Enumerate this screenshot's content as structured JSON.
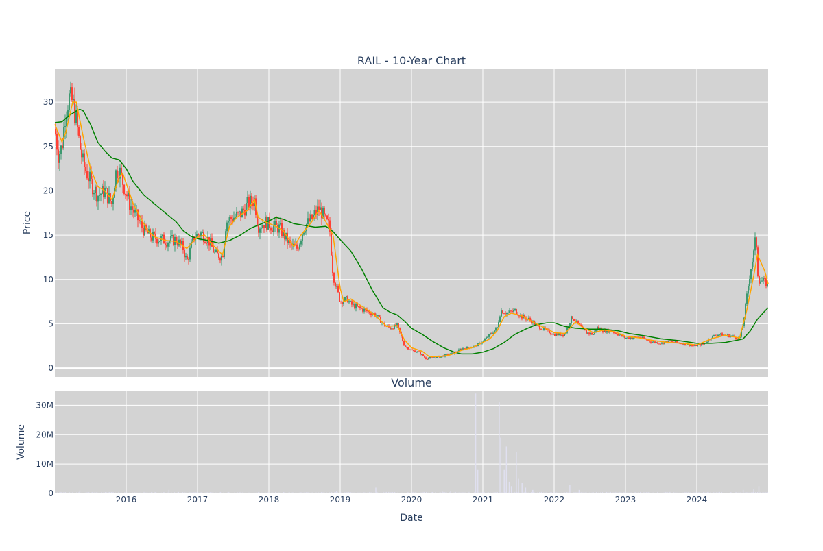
{
  "chart_data": [
    {
      "type": "candlestick",
      "title": "RAIL - 10-Year Chart",
      "ylabel": "Price",
      "ylim": [
        -1,
        33.8
      ],
      "y_ticks": [
        "0",
        "5",
        "10",
        "15",
        "20",
        "25",
        "30"
      ],
      "y_tick_values": [
        0,
        5,
        10,
        15,
        20,
        25,
        30
      ],
      "grid": true,
      "colors": {
        "up": "#3d9970",
        "down": "#ff4136",
        "ma_short": "#ffa500",
        "ma_long": "#008000",
        "background": "#d3d3d3"
      },
      "price_path": [
        [
          2015.0,
          27
        ],
        [
          2015.05,
          24
        ],
        [
          2015.1,
          25
        ],
        [
          2015.15,
          29
        ],
        [
          2015.2,
          30.5
        ],
        [
          2015.25,
          30
        ],
        [
          2015.3,
          28
        ],
        [
          2015.35,
          25
        ],
        [
          2015.4,
          23
        ],
        [
          2015.5,
          21
        ],
        [
          2015.6,
          19.5
        ],
        [
          2015.7,
          20
        ],
        [
          2015.8,
          18.5
        ],
        [
          2015.85,
          22
        ],
        [
          2015.9,
          22.5
        ],
        [
          2015.95,
          21
        ],
        [
          2016.05,
          18.5
        ],
        [
          2016.15,
          17
        ],
        [
          2016.25,
          15.5
        ],
        [
          2016.35,
          14.8
        ],
        [
          2016.5,
          14.5
        ],
        [
          2016.6,
          14.3
        ],
        [
          2016.7,
          14.5
        ],
        [
          2016.8,
          13.5
        ],
        [
          2016.85,
          12
        ],
        [
          2016.95,
          14.8
        ],
        [
          2017.05,
          15.2
        ],
        [
          2017.15,
          14.5
        ],
        [
          2017.25,
          12.8
        ],
        [
          2017.35,
          12.6
        ],
        [
          2017.4,
          16.5
        ],
        [
          2017.5,
          17
        ],
        [
          2017.6,
          17.3
        ],
        [
          2017.7,
          18.5
        ],
        [
          2017.8,
          19
        ],
        [
          2017.85,
          16
        ],
        [
          2017.95,
          16.5
        ],
        [
          2018.05,
          16
        ],
        [
          2018.15,
          15.8
        ],
        [
          2018.25,
          14.5
        ],
        [
          2018.3,
          13.8
        ],
        [
          2018.4,
          13.5
        ],
        [
          2018.5,
          16
        ],
        [
          2018.6,
          16.8
        ],
        [
          2018.7,
          18
        ],
        [
          2018.75,
          17.5
        ],
        [
          2018.8,
          16.5
        ],
        [
          2018.85,
          16
        ],
        [
          2018.9,
          10.5
        ],
        [
          2018.95,
          9
        ],
        [
          2019.0,
          7.5
        ],
        [
          2019.1,
          7.8
        ],
        [
          2019.15,
          7.2
        ],
        [
          2019.25,
          6.8
        ],
        [
          2019.35,
          6.5
        ],
        [
          2019.5,
          6
        ],
        [
          2019.6,
          5
        ],
        [
          2019.7,
          4.5
        ],
        [
          2019.8,
          4.8
        ],
        [
          2019.9,
          2.5
        ],
        [
          2020.0,
          2
        ],
        [
          2020.1,
          1.8
        ],
        [
          2020.2,
          1.1
        ],
        [
          2020.3,
          1.2
        ],
        [
          2020.4,
          1.3
        ],
        [
          2020.5,
          1.5
        ],
        [
          2020.6,
          1.7
        ],
        [
          2020.7,
          2.2
        ],
        [
          2020.8,
          2.3
        ],
        [
          2020.9,
          2.5
        ],
        [
          2021.0,
          3
        ],
        [
          2021.1,
          3.8
        ],
        [
          2021.2,
          4.5
        ],
        [
          2021.25,
          6.5
        ],
        [
          2021.35,
          6.2
        ],
        [
          2021.45,
          6.5
        ],
        [
          2021.55,
          5.8
        ],
        [
          2021.65,
          5.5
        ],
        [
          2021.75,
          4.8
        ],
        [
          2021.9,
          4.2
        ],
        [
          2022.0,
          3.8
        ],
        [
          2022.15,
          3.8
        ],
        [
          2022.25,
          5.8
        ],
        [
          2022.35,
          4.8
        ],
        [
          2022.45,
          4
        ],
        [
          2022.55,
          3.8
        ],
        [
          2022.6,
          4.6
        ],
        [
          2022.7,
          4.2
        ],
        [
          2022.8,
          4.2
        ],
        [
          2022.9,
          3.8
        ],
        [
          2023.0,
          3.4
        ],
        [
          2023.2,
          3.5
        ],
        [
          2023.35,
          3
        ],
        [
          2023.5,
          2.8
        ],
        [
          2023.6,
          3
        ],
        [
          2023.8,
          2.8
        ],
        [
          2023.95,
          2.5
        ],
        [
          2024.1,
          2.7
        ],
        [
          2024.2,
          3.5
        ],
        [
          2024.3,
          3.8
        ],
        [
          2024.5,
          3.6
        ],
        [
          2024.6,
          3.3
        ],
        [
          2024.65,
          5
        ],
        [
          2024.7,
          8
        ],
        [
          2024.75,
          11
        ],
        [
          2024.8,
          13
        ],
        [
          2024.83,
          15
        ],
        [
          2024.86,
          10
        ],
        [
          2024.92,
          9.8
        ],
        [
          2025.0,
          9.5
        ]
      ],
      "ma_short_path": [
        [
          2015.0,
          27.5
        ],
        [
          2015.1,
          25.5
        ],
        [
          2015.15,
          26.5
        ],
        [
          2015.25,
          30
        ],
        [
          2015.3,
          30
        ],
        [
          2015.4,
          26
        ],
        [
          2015.5,
          22.5
        ],
        [
          2015.6,
          20.5
        ],
        [
          2015.7,
          20
        ],
        [
          2015.8,
          19
        ],
        [
          2015.9,
          21.5
        ],
        [
          2015.95,
          22
        ],
        [
          2016.1,
          18.5
        ],
        [
          2016.2,
          17
        ],
        [
          2016.3,
          15.5
        ],
        [
          2016.4,
          14.8
        ],
        [
          2016.55,
          14.4
        ],
        [
          2016.7,
          14.3
        ],
        [
          2016.85,
          13.5
        ],
        [
          2017.0,
          14.8
        ],
        [
          2017.1,
          15
        ],
        [
          2017.2,
          14
        ],
        [
          2017.35,
          12.8
        ],
        [
          2017.45,
          16
        ],
        [
          2017.55,
          17
        ],
        [
          2017.7,
          17.8
        ],
        [
          2017.8,
          19
        ],
        [
          2017.85,
          17
        ],
        [
          2017.95,
          16.5
        ],
        [
          2018.1,
          16
        ],
        [
          2018.2,
          15.5
        ],
        [
          2018.35,
          13.7
        ],
        [
          2018.45,
          15
        ],
        [
          2018.6,
          16.5
        ],
        [
          2018.7,
          17.8
        ],
        [
          2018.8,
          16.5
        ],
        [
          2018.9,
          15
        ],
        [
          2019.0,
          9
        ],
        [
          2019.05,
          7.5
        ],
        [
          2019.15,
          7.8
        ],
        [
          2019.3,
          7
        ],
        [
          2019.45,
          6.2
        ],
        [
          2019.55,
          5.5
        ],
        [
          2019.65,
          4.7
        ],
        [
          2019.8,
          4.8
        ],
        [
          2019.9,
          3.2
        ],
        [
          2020.0,
          2.3
        ],
        [
          2020.15,
          1.9
        ],
        [
          2020.25,
          1.3
        ],
        [
          2020.4,
          1.3
        ],
        [
          2020.55,
          1.5
        ],
        [
          2020.7,
          2
        ],
        [
          2020.85,
          2.3
        ],
        [
          2020.95,
          2.7
        ],
        [
          2021.1,
          3.3
        ],
        [
          2021.2,
          4.2
        ],
        [
          2021.3,
          5.8
        ],
        [
          2021.4,
          6.2
        ],
        [
          2021.55,
          5.9
        ],
        [
          2021.7,
          5.2
        ],
        [
          2021.85,
          4.6
        ],
        [
          2022.0,
          4
        ],
        [
          2022.15,
          3.9
        ],
        [
          2022.3,
          5.2
        ],
        [
          2022.4,
          4.6
        ],
        [
          2022.55,
          4
        ],
        [
          2022.7,
          4.3
        ],
        [
          2022.85,
          4.1
        ],
        [
          2023.0,
          3.6
        ],
        [
          2023.2,
          3.4
        ],
        [
          2023.4,
          3.1
        ],
        [
          2023.6,
          2.9
        ],
        [
          2023.8,
          2.8
        ],
        [
          2024.0,
          2.6
        ],
        [
          2024.2,
          3.3
        ],
        [
          2024.4,
          3.7
        ],
        [
          2024.6,
          3.4
        ],
        [
          2024.7,
          6.5
        ],
        [
          2024.8,
          10.5
        ],
        [
          2024.85,
          12.8
        ],
        [
          2024.95,
          11
        ],
        [
          2025.0,
          9.5
        ]
      ],
      "ma_long_path": [
        [
          2015.0,
          27.7
        ],
        [
          2015.1,
          27.8
        ],
        [
          2015.2,
          28.5
        ],
        [
          2015.3,
          29
        ],
        [
          2015.35,
          29.2
        ],
        [
          2015.4,
          29
        ],
        [
          2015.5,
          27.5
        ],
        [
          2015.6,
          25.5
        ],
        [
          2015.7,
          24.5
        ],
        [
          2015.8,
          23.7
        ],
        [
          2015.9,
          23.5
        ],
        [
          2016.0,
          22.5
        ],
        [
          2016.1,
          21
        ],
        [
          2016.25,
          19.5
        ],
        [
          2016.4,
          18.5
        ],
        [
          2016.55,
          17.5
        ],
        [
          2016.7,
          16.5
        ],
        [
          2016.8,
          15.5
        ],
        [
          2016.9,
          14.9
        ],
        [
          2017.0,
          14.6
        ],
        [
          2017.15,
          14.4
        ],
        [
          2017.3,
          14.1
        ],
        [
          2017.45,
          14.4
        ],
        [
          2017.6,
          15
        ],
        [
          2017.75,
          15.8
        ],
        [
          2017.9,
          16.3
        ],
        [
          2018.0,
          16.6
        ],
        [
          2018.1,
          17
        ],
        [
          2018.2,
          16.8
        ],
        [
          2018.35,
          16.3
        ],
        [
          2018.5,
          16.1
        ],
        [
          2018.65,
          15.9
        ],
        [
          2018.8,
          16
        ],
        [
          2018.9,
          15.4
        ],
        [
          2019.0,
          14.5
        ],
        [
          2019.15,
          13.2
        ],
        [
          2019.3,
          11.2
        ],
        [
          2019.45,
          8.8
        ],
        [
          2019.6,
          6.8
        ],
        [
          2019.7,
          6.3
        ],
        [
          2019.8,
          6
        ],
        [
          2019.9,
          5.3
        ],
        [
          2020.0,
          4.5
        ],
        [
          2020.15,
          3.8
        ],
        [
          2020.3,
          3
        ],
        [
          2020.45,
          2.3
        ],
        [
          2020.6,
          1.8
        ],
        [
          2020.7,
          1.6
        ],
        [
          2020.85,
          1.6
        ],
        [
          2021.0,
          1.8
        ],
        [
          2021.15,
          2.2
        ],
        [
          2021.3,
          2.9
        ],
        [
          2021.45,
          3.8
        ],
        [
          2021.6,
          4.4
        ],
        [
          2021.75,
          4.9
        ],
        [
          2021.9,
          5.1
        ],
        [
          2022.0,
          5.1
        ],
        [
          2022.15,
          4.7
        ],
        [
          2022.3,
          4.5
        ],
        [
          2022.5,
          4.4
        ],
        [
          2022.7,
          4.4
        ],
        [
          2022.9,
          4.2
        ],
        [
          2023.05,
          3.9
        ],
        [
          2023.3,
          3.6
        ],
        [
          2023.5,
          3.3
        ],
        [
          2023.75,
          3.1
        ],
        [
          2024.0,
          2.8
        ],
        [
          2024.2,
          2.8
        ],
        [
          2024.4,
          2.9
        ],
        [
          2024.6,
          3.2
        ],
        [
          2024.65,
          3.3
        ],
        [
          2024.75,
          4.2
        ],
        [
          2024.85,
          5.5
        ],
        [
          2024.95,
          6.4
        ],
        [
          2025.0,
          6.8
        ]
      ]
    },
    {
      "type": "bar",
      "title": "Volume",
      "xlabel": "Date",
      "ylabel": "Volume",
      "ylim": [
        0,
        35000000
      ],
      "y_ticks": [
        "0",
        "10M",
        "20M",
        "30M"
      ],
      "y_tick_values": [
        0,
        10000000,
        20000000,
        30000000
      ],
      "x_ticks": [
        "2016",
        "2017",
        "2018",
        "2019",
        "2020",
        "2021",
        "2022",
        "2023",
        "2024"
      ],
      "x_tick_values": [
        2016,
        2017,
        2018,
        2019,
        2020,
        2021,
        2022,
        2023,
        2024
      ],
      "xlim": [
        2015.0,
        2025.0
      ],
      "bar_color": "#e0e0f0",
      "spikes": [
        [
          2015.35,
          1000000
        ],
        [
          2016.6,
          1200000
        ],
        [
          2018.95,
          700000
        ],
        [
          2019.5,
          2000000
        ],
        [
          2020.43,
          900000
        ],
        [
          2020.55,
          700000
        ],
        [
          2020.9,
          34000000
        ],
        [
          2020.93,
          8000000
        ],
        [
          2021.23,
          31000000
        ],
        [
          2021.25,
          19000000
        ],
        [
          2021.3,
          8000000
        ],
        [
          2021.33,
          16000000
        ],
        [
          2021.37,
          4000000
        ],
        [
          2021.4,
          2500000
        ],
        [
          2021.47,
          14000000
        ],
        [
          2021.5,
          5000000
        ],
        [
          2021.55,
          3500000
        ],
        [
          2021.6,
          2000000
        ],
        [
          2021.7,
          1200000
        ],
        [
          2022.22,
          3000000
        ],
        [
          2022.35,
          1200000
        ],
        [
          2024.65,
          1200000
        ],
        [
          2024.8,
          1500000
        ],
        [
          2024.87,
          2500000
        ]
      ]
    }
  ]
}
